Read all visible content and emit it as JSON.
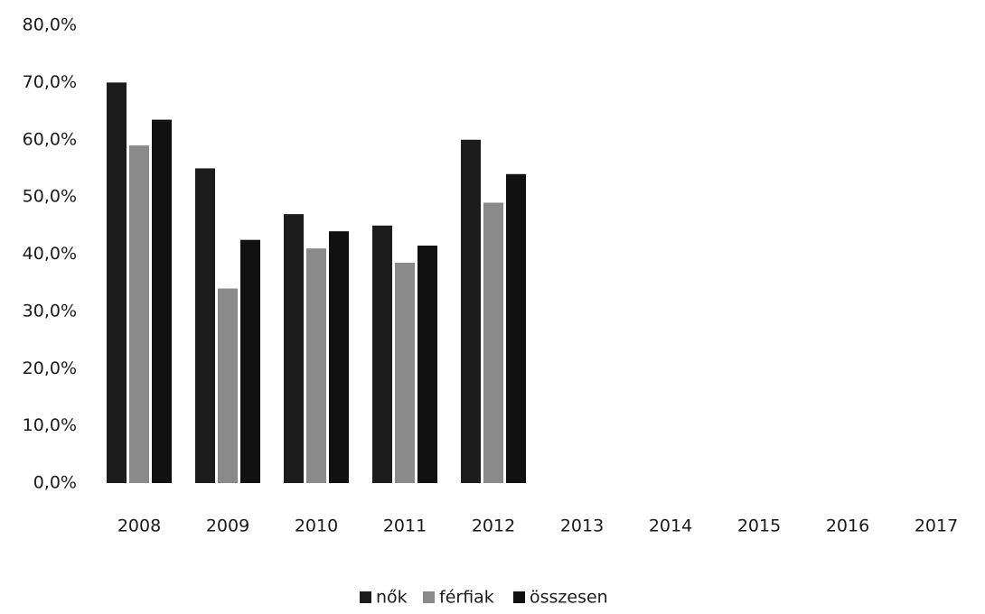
{
  "chart_data": {
    "type": "bar",
    "categories": [
      "2008",
      "2009",
      "2010",
      "2011",
      "2012",
      "2013",
      "2014",
      "2015",
      "2016",
      "2017"
    ],
    "series": [
      {
        "name": "nők",
        "color": "#1c1c1c",
        "values": [
          70,
          55,
          47,
          45,
          60,
          null,
          null,
          null,
          null,
          null
        ]
      },
      {
        "name": "férfiak",
        "color": "#8a8a8a",
        "values": [
          59,
          34,
          41,
          38.5,
          49,
          null,
          null,
          null,
          null,
          null
        ]
      },
      {
        "name": "összesen",
        "color": "#111111",
        "values": [
          63.5,
          42.5,
          44,
          41.5,
          54,
          null,
          null,
          null,
          null,
          null
        ]
      }
    ],
    "ylim": [
      0,
      80
    ],
    "yticks": [
      {
        "value": 0,
        "label": "0,0%"
      },
      {
        "value": 10,
        "label": "10,0%"
      },
      {
        "value": 20,
        "label": "20,0%"
      },
      {
        "value": 30,
        "label": "30,0%"
      },
      {
        "value": 40,
        "label": "40,0%"
      },
      {
        "value": 50,
        "label": "50,0%"
      },
      {
        "value": 60,
        "label": "60,0%"
      },
      {
        "value": 70,
        "label": "70,0%"
      },
      {
        "value": 80,
        "label": "80,0%"
      }
    ],
    "grid": false,
    "legend": "bottom"
  }
}
